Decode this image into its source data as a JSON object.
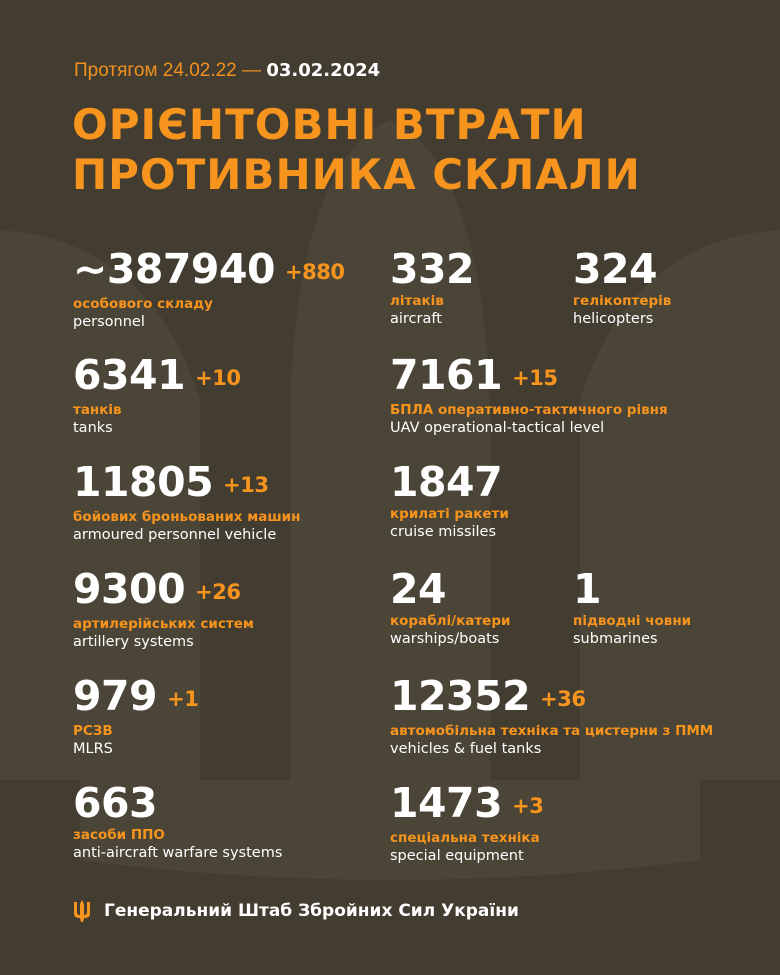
{
  "header": {
    "period_prefix": "Протягом 24.02.22 —",
    "period_date": "03.02.2024",
    "title_line1": "ОРІЄНТОВНІ ВТРАТИ",
    "title_line2": "ПРОТИВНИКА СКЛАЛИ"
  },
  "stats": [
    {
      "value": "~387940",
      "delta": "+880",
      "ua": "особового складу",
      "en": "personnel"
    },
    {
      "value": "332",
      "delta": "",
      "ua": "літаків",
      "en": "aircraft"
    },
    {
      "value": "324",
      "delta": "",
      "ua": "гелікоптерів",
      "en": "helicopters"
    },
    {
      "value": "6341",
      "delta": "+10",
      "ua": "танків",
      "en": "tanks"
    },
    {
      "value": "7161",
      "delta": "+15",
      "ua": "БПЛА оперативно-тактичного рівня",
      "en": "UAV operational-tactical level"
    },
    {
      "value": "11805",
      "delta": "+13",
      "ua": "бойових броньованих машин",
      "en": "armoured personnel vehicle"
    },
    {
      "value": "1847",
      "delta": "",
      "ua": "крилаті ракети",
      "en": "cruise missiles"
    },
    {
      "value": "9300",
      "delta": "+26",
      "ua": "артилерійських систем",
      "en": "artillery systems"
    },
    {
      "value": "24",
      "delta": "",
      "ua": "кораблі/катери",
      "en": "warships/boats"
    },
    {
      "value": "1",
      "delta": "",
      "ua": "підводні човни",
      "en": "submarines"
    },
    {
      "value": "979",
      "delta": "+1",
      "ua": "РСЗВ",
      "en": "MLRS"
    },
    {
      "value": "12352",
      "delta": "+36",
      "ua": "автомобільна техніка та цистерни з ПММ",
      "en": "vehicles & fuel tanks"
    },
    {
      "value": "663",
      "delta": "",
      "ua": "засоби ППО",
      "en": "anti-aircraft warfare systems"
    },
    {
      "value": "1473",
      "delta": "+3",
      "ua": "спеціальна техніка",
      "en": "special equipment"
    }
  ],
  "footer": {
    "icon": "trident-icon",
    "text": "Генеральний Штаб Збройних Сил України"
  },
  "colors": {
    "background": "#433d31",
    "accent": "#f7941d",
    "text": "#ffffff"
  }
}
